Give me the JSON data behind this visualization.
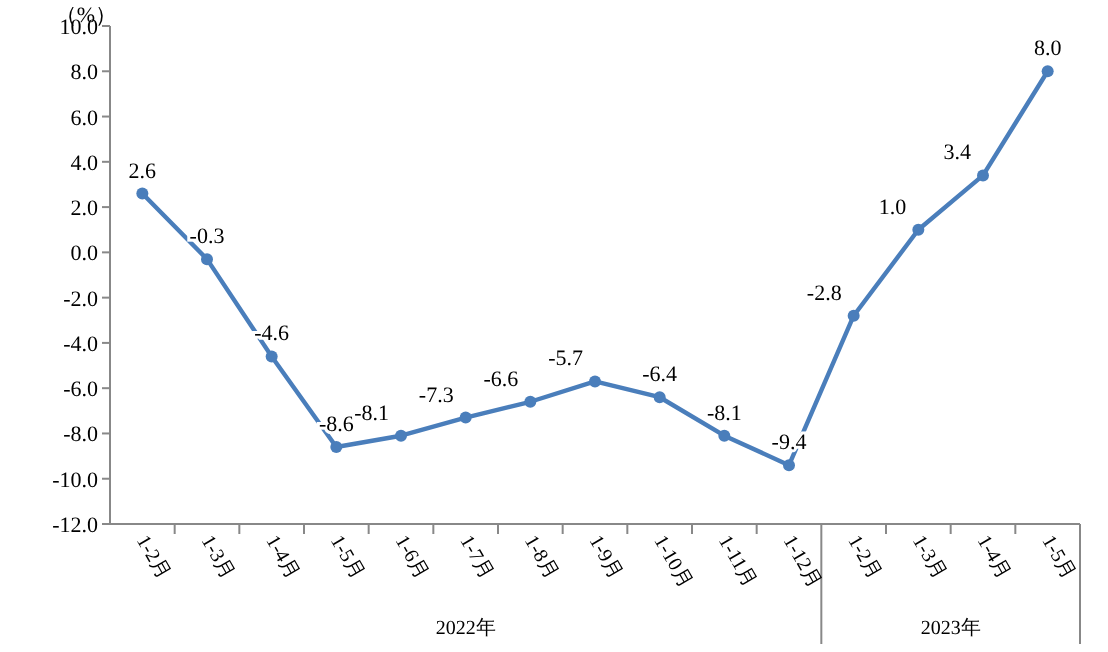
{
  "chart_data": {
    "type": "line",
    "ylabel": "（%）",
    "categories": [
      "1-2月",
      "1-3月",
      "1-4月",
      "1-5月",
      "1-6月",
      "1-7月",
      "1-8月",
      "1-9月",
      "1-10月",
      "1-11月",
      "1-12月",
      "1-2月",
      "1-3月",
      "1-4月",
      "1-5月"
    ],
    "series": [
      {
        "color": "#4a7ebb",
        "values": [
          2.6,
          -0.3,
          -4.6,
          -8.6,
          -8.1,
          -7.3,
          -6.6,
          -5.7,
          -6.4,
          -8.1,
          -9.4,
          -2.8,
          1.0,
          3.4,
          8.0
        ],
        "value_labels": [
          "2.6",
          "-0.3",
          "-4.6",
          "-8.6",
          "-8.1",
          "-7.3",
          "-6.6",
          "-5.7",
          "-6.4",
          "-8.1",
          "-9.4",
          "-2.8",
          "1.0",
          "3.4",
          "8.0"
        ]
      }
    ],
    "ylim": [
      -12,
      10
    ],
    "yticks": [
      {
        "value": 10,
        "label": "10.0"
      },
      {
        "value": 8,
        "label": "8.0"
      },
      {
        "value": 6,
        "label": "6.0"
      },
      {
        "value": 4,
        "label": "4.0"
      },
      {
        "value": 2,
        "label": "2.0"
      },
      {
        "value": 0,
        "label": "0.0"
      },
      {
        "value": -2,
        "label": "-2.0"
      },
      {
        "value": -4,
        "label": "-4.0"
      },
      {
        "value": -6,
        "label": "-6.0"
      },
      {
        "value": -8,
        "label": "-8.0"
      },
      {
        "value": -10,
        "label": "-10.0"
      },
      {
        "value": -12,
        "label": "-12.0"
      }
    ],
    "annotations": [
      "2022年",
      "2023年"
    ],
    "marker": "circle",
    "line_style": "solid",
    "grid": false
  }
}
